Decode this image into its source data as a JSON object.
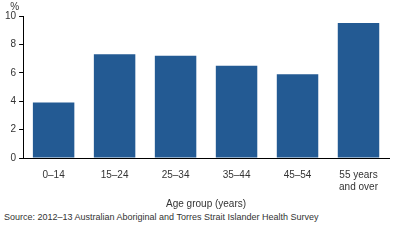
{
  "chart_data": {
    "type": "bar",
    "ylabel": "%",
    "xlabel": "Age group (years)",
    "source": "Source: 2012–13 Australian Aboriginal and Torres Strait Islander Health Survey",
    "categories": [
      "0–14",
      "15–24",
      "25–34",
      "35–44",
      "45–54",
      "55 years and over"
    ],
    "values": [
      3.9,
      7.3,
      7.2,
      6.5,
      5.9,
      9.5
    ],
    "color": "#235a93",
    "ylim": [
      0,
      10
    ],
    "yticks": [
      0,
      2,
      4,
      6,
      8,
      10
    ],
    "grid": true
  }
}
